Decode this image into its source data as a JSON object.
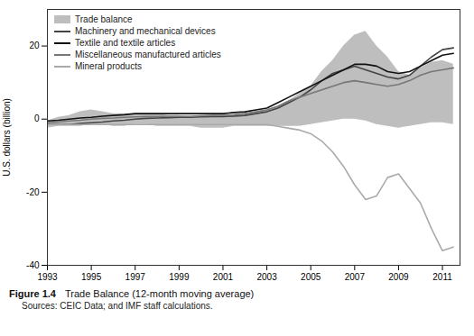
{
  "chart_data": {
    "type": "line",
    "title": "Figure 1.4",
    "subtitle": "Trade Balance (12-month moving average)",
    "caption": "Sources: CEIC Data; and IMF staff calculations.",
    "ylabel": "U.S. dollars (billion)",
    "xlim": [
      1993,
      2011.8
    ],
    "ylim": [
      -40,
      30
    ],
    "xticks": [
      1993,
      1995,
      1997,
      1999,
      2001,
      2003,
      2005,
      2007,
      2009,
      2011
    ],
    "yticks": [
      -40,
      -20,
      0,
      20
    ],
    "grid": false,
    "legend": "upper left",
    "x": [
      1993.0,
      1993.5,
      1994.0,
      1994.5,
      1995.0,
      1995.5,
      1996.0,
      1996.5,
      1997.0,
      1997.5,
      1998.0,
      1998.5,
      1999.0,
      1999.5,
      2000.0,
      2000.5,
      2001.0,
      2001.5,
      2002.0,
      2002.5,
      2003.0,
      2003.5,
      2004.0,
      2004.5,
      2005.0,
      2005.5,
      2006.0,
      2006.5,
      2007.0,
      2007.5,
      2008.0,
      2008.5,
      2009.0,
      2009.5,
      2010.0,
      2010.5,
      2011.0,
      2011.5
    ],
    "series": [
      {
        "name": "Trade balance",
        "type": "area",
        "color": "#bebebe",
        "upper": [
          -0.5,
          0.5,
          1.0,
          2.0,
          2.5,
          2.0,
          1.5,
          1.5,
          1.5,
          1.5,
          1.5,
          1.0,
          1.0,
          0.5,
          0.5,
          0.5,
          0.5,
          1.0,
          1.5,
          2.0,
          2.5,
          3.5,
          5.0,
          7.0,
          9.0,
          13.0,
          16.0,
          20.0,
          23.0,
          24.0,
          20.0,
          17.0,
          13.0,
          12.0,
          14.0,
          15.5,
          16.0,
          15.0
        ],
        "lower": [
          -2.5,
          -2.0,
          -2.0,
          -2.0,
          -1.5,
          -1.5,
          -2.0,
          -2.0,
          -1.5,
          -1.5,
          -2.0,
          -2.0,
          -2.0,
          -2.0,
          -2.5,
          -2.5,
          -2.5,
          -2.0,
          -2.0,
          -2.0,
          -2.0,
          -2.0,
          -2.0,
          -2.0,
          -1.5,
          -1.0,
          -0.5,
          0.0,
          0.0,
          -0.5,
          -1.5,
          -2.0,
          -2.5,
          -2.0,
          -1.5,
          -1.0,
          -1.0,
          -1.5
        ]
      },
      {
        "name": "Machinery and mechanical devices",
        "type": "line",
        "color": "#444444",
        "values": [
          -1.5,
          -1.5,
          -1.5,
          -1.2,
          -1.0,
          -0.8,
          -0.5,
          -0.3,
          0.0,
          0.2,
          0.3,
          0.4,
          0.5,
          0.5,
          0.6,
          0.7,
          0.7,
          0.8,
          1.0,
          1.5,
          2.0,
          3.0,
          4.5,
          6.0,
          8.0,
          10.5,
          12.5,
          13.5,
          14.5,
          13.5,
          12.5,
          11.5,
          11.0,
          12.0,
          14.5,
          17.0,
          19.0,
          19.5
        ]
      },
      {
        "name": "Textile and textile articles",
        "type": "line",
        "color": "#111111",
        "values": [
          -0.5,
          -0.3,
          0.0,
          0.3,
          0.5,
          0.8,
          1.0,
          1.2,
          1.5,
          1.5,
          1.5,
          1.5,
          1.5,
          1.5,
          1.5,
          1.5,
          1.5,
          1.8,
          2.0,
          2.5,
          3.0,
          4.5,
          6.0,
          7.5,
          9.0,
          10.5,
          12.0,
          13.5,
          15.0,
          15.0,
          14.5,
          13.0,
          12.5,
          13.0,
          14.5,
          16.0,
          17.5,
          18.0
        ]
      },
      {
        "name": "Miscellaneous manufactured articles",
        "type": "line",
        "color": "#777777",
        "values": [
          -1.0,
          -0.8,
          -0.5,
          -0.3,
          0.0,
          0.2,
          0.3,
          0.5,
          0.6,
          0.7,
          0.7,
          0.8,
          0.8,
          0.8,
          0.9,
          1.0,
          1.0,
          1.2,
          1.5,
          2.0,
          2.5,
          3.5,
          5.0,
          6.0,
          7.0,
          8.0,
          9.0,
          10.0,
          10.5,
          10.0,
          9.5,
          9.0,
          9.5,
          10.5,
          12.0,
          13.0,
          13.5,
          14.0
        ]
      },
      {
        "name": "Mineral products",
        "type": "line",
        "color": "#aaaaaa",
        "values": [
          -1.5,
          -1.5,
          -1.5,
          -1.5,
          -1.5,
          -1.5,
          -1.5,
          -1.5,
          -1.5,
          -1.5,
          -1.5,
          -1.5,
          -1.5,
          -1.5,
          -1.5,
          -1.5,
          -1.5,
          -1.5,
          -1.5,
          -1.5,
          -1.5,
          -2.0,
          -2.5,
          -3.0,
          -4.0,
          -6.0,
          -9.0,
          -13.0,
          -18.0,
          -22.0,
          -21.0,
          -16.0,
          -15.0,
          -19.0,
          -23.0,
          -30.0,
          -36.0,
          -35.0
        ]
      }
    ]
  }
}
